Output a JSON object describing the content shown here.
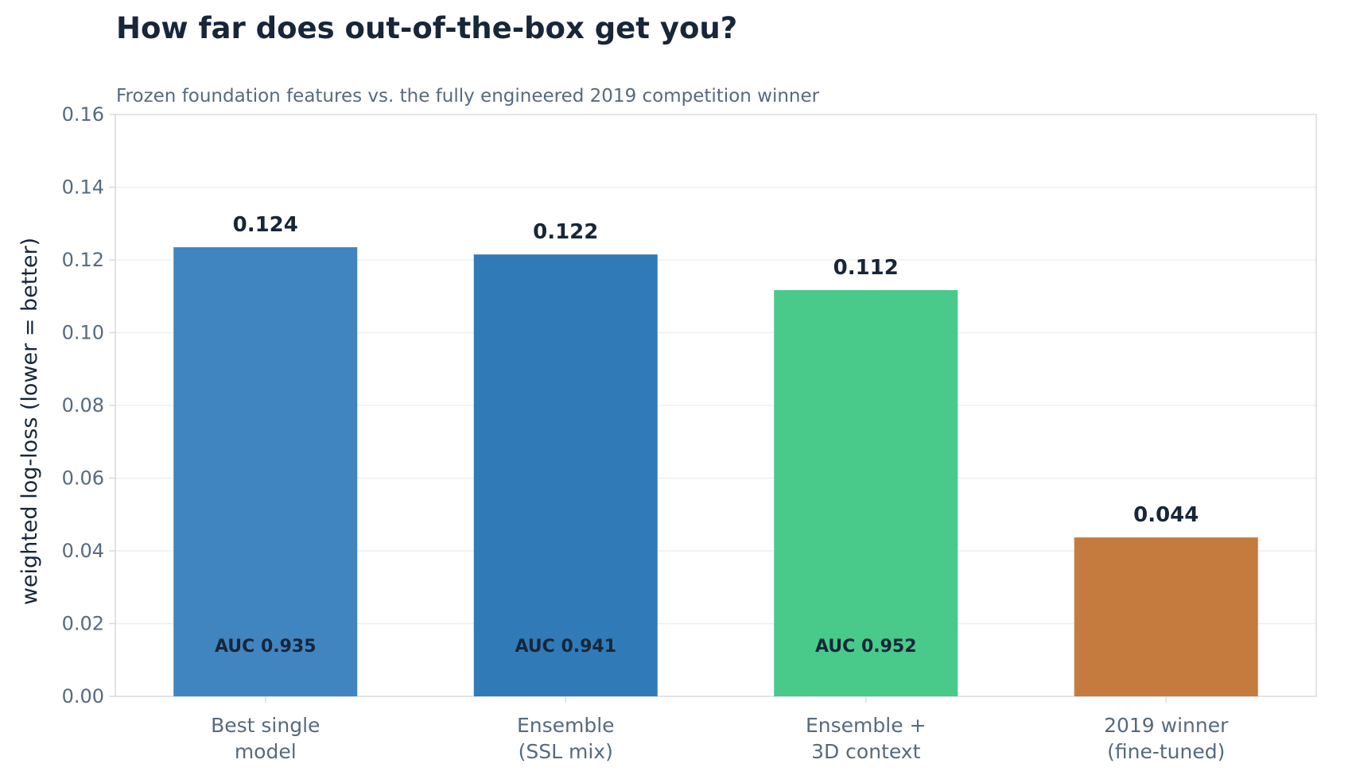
{
  "chart_data": {
    "type": "bar",
    "title": "How far does out-of-the-box get you?",
    "subtitle": "Frozen foundation features vs. the fully engineered 2019 competition winner",
    "ylabel": "weighted log-loss  (lower = better)",
    "xlabel": "",
    "ylim": [
      0,
      0.16
    ],
    "yticks": [
      0.0,
      0.02,
      0.04,
      0.06,
      0.08,
      0.1,
      0.12,
      0.14,
      0.16
    ],
    "ytick_labels": [
      "0.00",
      "0.02",
      "0.04",
      "0.06",
      "0.08",
      "0.10",
      "0.12",
      "0.14",
      "0.16"
    ],
    "grid": true,
    "categories": [
      [
        "Best single",
        "model"
      ],
      [
        "Ensemble",
        "(SSL mix)"
      ],
      [
        "Ensemble +",
        "3D context"
      ],
      [
        "2019 winner",
        "(fine-tuned)"
      ]
    ],
    "values": [
      0.1235,
      0.1215,
      0.1117,
      0.0437
    ],
    "value_labels": [
      "0.124",
      "0.122",
      "0.112",
      "0.044"
    ],
    "auc_labels": [
      "AUC 0.935",
      "AUC 0.941",
      "AUC 0.952",
      ""
    ],
    "colors": [
      "#4185c0",
      "#307bb7",
      "#49c98a",
      "#c57b3e"
    ],
    "grid_color": "#edf0f3",
    "axis_color": "#d5dbe1"
  }
}
